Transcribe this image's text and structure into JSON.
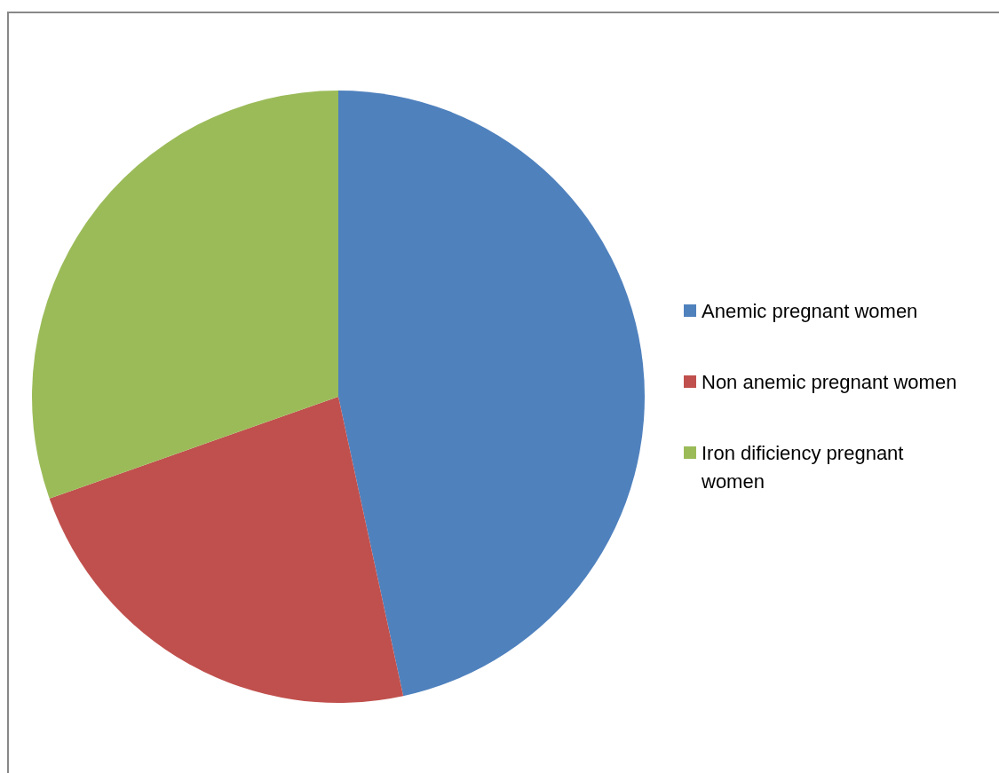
{
  "chart_data": {
    "type": "pie",
    "categories": [
      "Anemic pregnant women",
      "Non anemic pregnant women",
      "Iron dificiency pregnant women"
    ],
    "values": [
      46.6,
      23.0,
      30.4
    ],
    "colors": [
      "#4f81bd",
      "#c0504d",
      "#9bbb59"
    ],
    "legend": "right"
  }
}
